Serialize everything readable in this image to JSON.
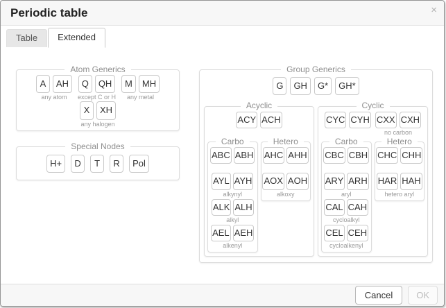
{
  "dialog": {
    "title": "Periodic table"
  },
  "icons": {
    "close_glyph": "×"
  },
  "tabs": [
    {
      "label": "Table",
      "active": false
    },
    {
      "label": "Extended",
      "active": true
    }
  ],
  "atom_generics": {
    "legend": "Atom Generics",
    "groups": [
      {
        "buttons": [
          "A",
          "AH"
        ],
        "caption": "any atom"
      },
      {
        "buttons": [
          "Q",
          "QH"
        ],
        "caption": "except C or H"
      },
      {
        "buttons": [
          "M",
          "MH"
        ],
        "caption": "any metal"
      },
      {
        "buttons": [
          "X",
          "XH"
        ],
        "caption": "any halogen"
      }
    ]
  },
  "special_nodes": {
    "legend": "Special Nodes",
    "buttons": [
      "H+",
      "D",
      "T",
      "R",
      "Pol"
    ]
  },
  "group_generics": {
    "legend": "Group Generics",
    "buttons": [
      "G",
      "GH",
      "G*",
      "GH*"
    ],
    "acyclic": {
      "legend": "Acyclic",
      "top": {
        "buttons": [
          "ACY",
          "ACH"
        ],
        "caption": ""
      },
      "carbo": {
        "legend": "Carbo",
        "groups": [
          {
            "buttons": [
              "ABC",
              "ABH"
            ],
            "caption": ""
          },
          {
            "buttons": [
              "AYL",
              "AYH"
            ],
            "caption": "alkynyl"
          },
          {
            "buttons": [
              "ALK",
              "ALH"
            ],
            "caption": "alkyl"
          },
          {
            "buttons": [
              "AEL",
              "AEH"
            ],
            "caption": "alkenyl"
          }
        ]
      },
      "hetero": {
        "legend": "Hetero",
        "groups": [
          {
            "buttons": [
              "AHC",
              "AHH"
            ],
            "caption": ""
          },
          {
            "buttons": [
              "AOX",
              "AOH"
            ],
            "caption": "alkoxy"
          }
        ]
      }
    },
    "cyclic": {
      "legend": "Cyclic",
      "top_groups": [
        {
          "buttons": [
            "CYC",
            "CYH"
          ],
          "caption": ""
        },
        {
          "buttons": [
            "CXX",
            "CXH"
          ],
          "caption": "no carbon"
        }
      ],
      "carbo": {
        "legend": "Carbo",
        "groups": [
          {
            "buttons": [
              "CBC",
              "CBH"
            ],
            "caption": ""
          },
          {
            "buttons": [
              "ARY",
              "ARH"
            ],
            "caption": "aryl"
          },
          {
            "buttons": [
              "CAL",
              "CAH"
            ],
            "caption": "cycloalkyl"
          },
          {
            "buttons": [
              "CEL",
              "CEH"
            ],
            "caption": "cycloalkenyl"
          }
        ]
      },
      "hetero": {
        "legend": "Hetero",
        "groups": [
          {
            "buttons": [
              "CHC",
              "CHH"
            ],
            "caption": ""
          },
          {
            "buttons": [
              "HAR",
              "HAH"
            ],
            "caption": "hetero aryl"
          }
        ]
      }
    }
  },
  "footer": {
    "cancel_label": "Cancel",
    "ok_label": "OK",
    "ok_enabled": false
  },
  "colors": {
    "dialog_border": "#949494",
    "titlebar_bg": "#f7f7f7",
    "fieldset_border": "#dcdcdc",
    "button_border": "#c9c9c9",
    "button_text": "#333333",
    "legend_text": "#8f8f8f",
    "caption_text": "#9a9a9a",
    "tab_inactive_bg": "#e7e7e7",
    "disabled_text": "#bcbcbc"
  }
}
